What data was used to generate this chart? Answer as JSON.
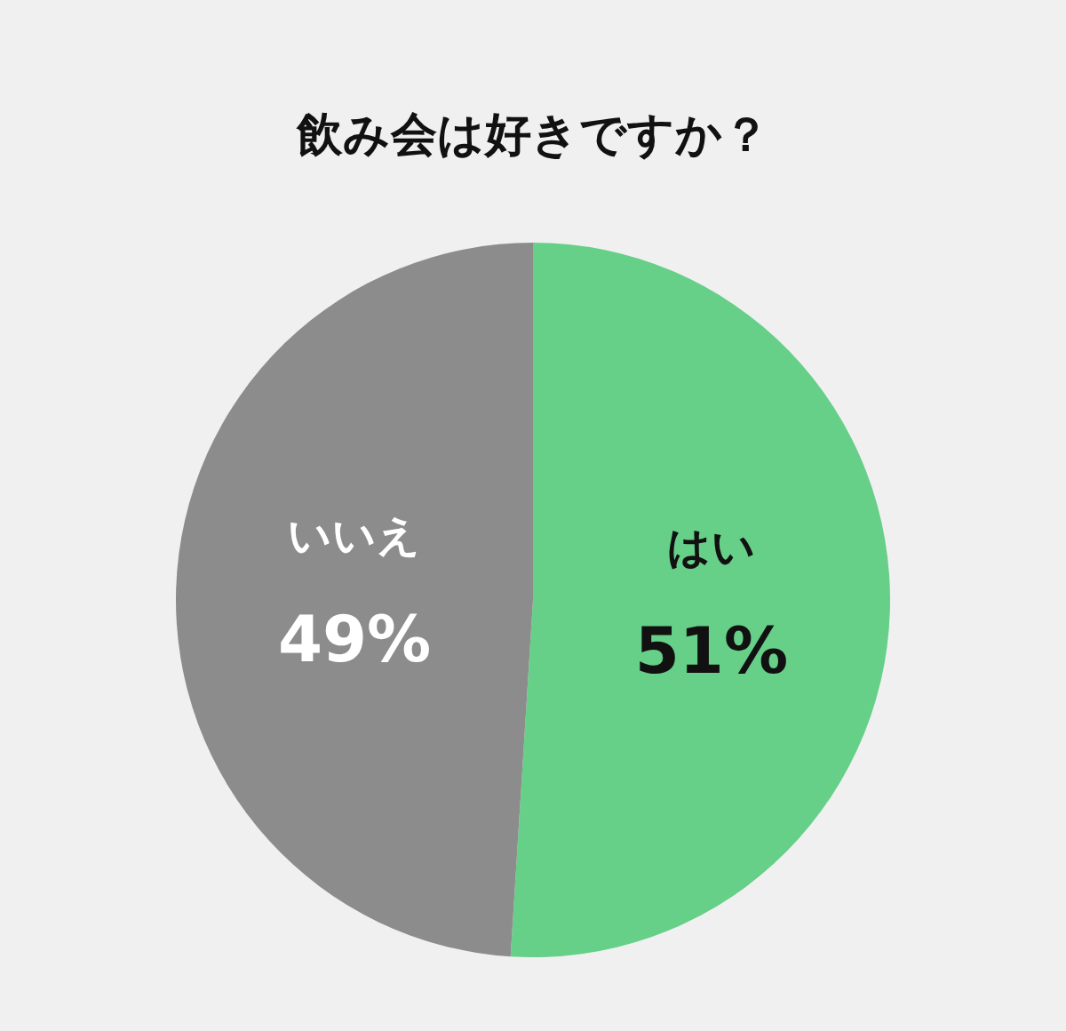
{
  "chart_data": {
    "type": "pie",
    "title": "飲み会は好きですか？",
    "categories": [
      "はい",
      "いいえ"
    ],
    "values": [
      51,
      49
    ],
    "value_labels": [
      "51%",
      "49%"
    ],
    "colors": [
      "#66cf88",
      "#8c8c8c"
    ]
  }
}
